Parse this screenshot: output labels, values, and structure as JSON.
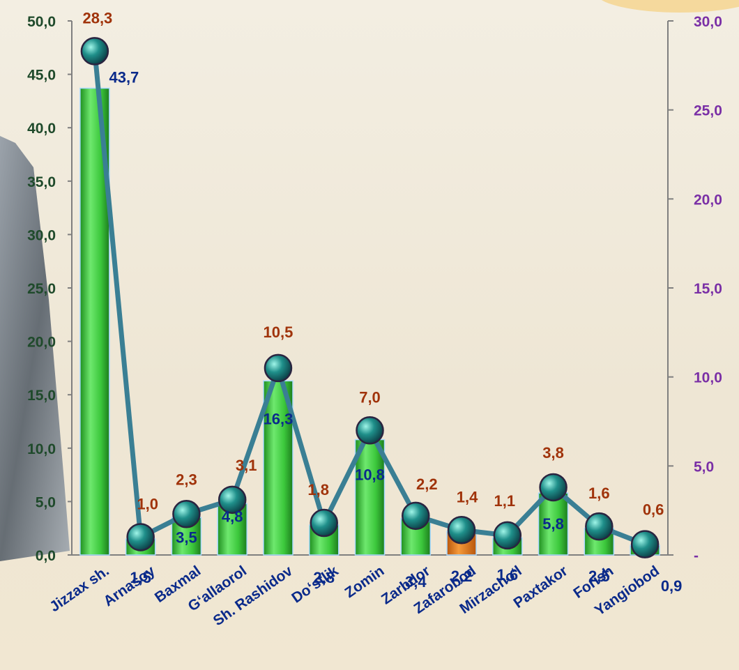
{
  "colors": {
    "bar": "#3cc83c",
    "bar_highlight": "#e8781a",
    "line": "#3a7f94",
    "marker": "#1f8f8a",
    "bar_label": "#0a2a8a",
    "line_label": "#a0330a",
    "left_axis_text": "#1f4a2b",
    "right_axis_text": "#7a2fa6",
    "axis_line": "#7f7f7f"
  },
  "chart_data": {
    "type": "bar",
    "categories": [
      "Jizzax sh.",
      "Arnasoy",
      "Baxmal",
      "G‘allaorol",
      "Sh. Rashidov",
      "Do‘stlik",
      "Zomin",
      "Zarbdor",
      "Zafarobod",
      "Mirzacho‘l",
      "Paxtakor",
      "Forish",
      "Yangiobod"
    ],
    "series": [
      {
        "type": "bar",
        "axis": "left",
        "values": [
          43.7,
          1.5,
          3.5,
          4.8,
          16.3,
          2.8,
          10.8,
          3.4,
          2.2,
          1.6,
          5.8,
          2.5,
          0.9
        ],
        "labels": [
          "43,7",
          "1,5",
          "3,5",
          "4,8",
          "16,3",
          "2,8",
          "10,8",
          "3,4",
          "2,2",
          "1,6",
          "5,8",
          "2,5",
          "0,9"
        ],
        "highlight_index": 8
      },
      {
        "type": "line",
        "axis": "right",
        "values": [
          28.3,
          1.0,
          2.3,
          3.1,
          10.5,
          1.8,
          7.0,
          2.2,
          1.4,
          1.1,
          3.8,
          1.6,
          0.6
        ],
        "labels": [
          "28,3",
          "1,0",
          "2,3",
          "3,1",
          "10,5",
          "1,8",
          "7,0",
          "2,2",
          "1,4",
          "1,1",
          "3,8",
          "1,6",
          "0,6"
        ]
      }
    ],
    "left_axis": {
      "ylim": [
        0,
        50
      ],
      "ticks": [
        0,
        5,
        10,
        15,
        20,
        25,
        30,
        35,
        40,
        45,
        50
      ],
      "tick_labels": [
        "0,0",
        "5,0",
        "10,0",
        "15,0",
        "20,0",
        "25,0",
        "30,0",
        "35,0",
        "40,0",
        "45,0",
        "50,0"
      ]
    },
    "right_axis": {
      "ylim": [
        0,
        30
      ],
      "ticks": [
        0,
        5,
        10,
        15,
        20,
        25,
        30
      ],
      "tick_labels": [
        "-",
        "5,0",
        "10,0",
        "15,0",
        "20,0",
        "25,0",
        "30,0"
      ]
    },
    "grid": false,
    "legend": "none"
  }
}
